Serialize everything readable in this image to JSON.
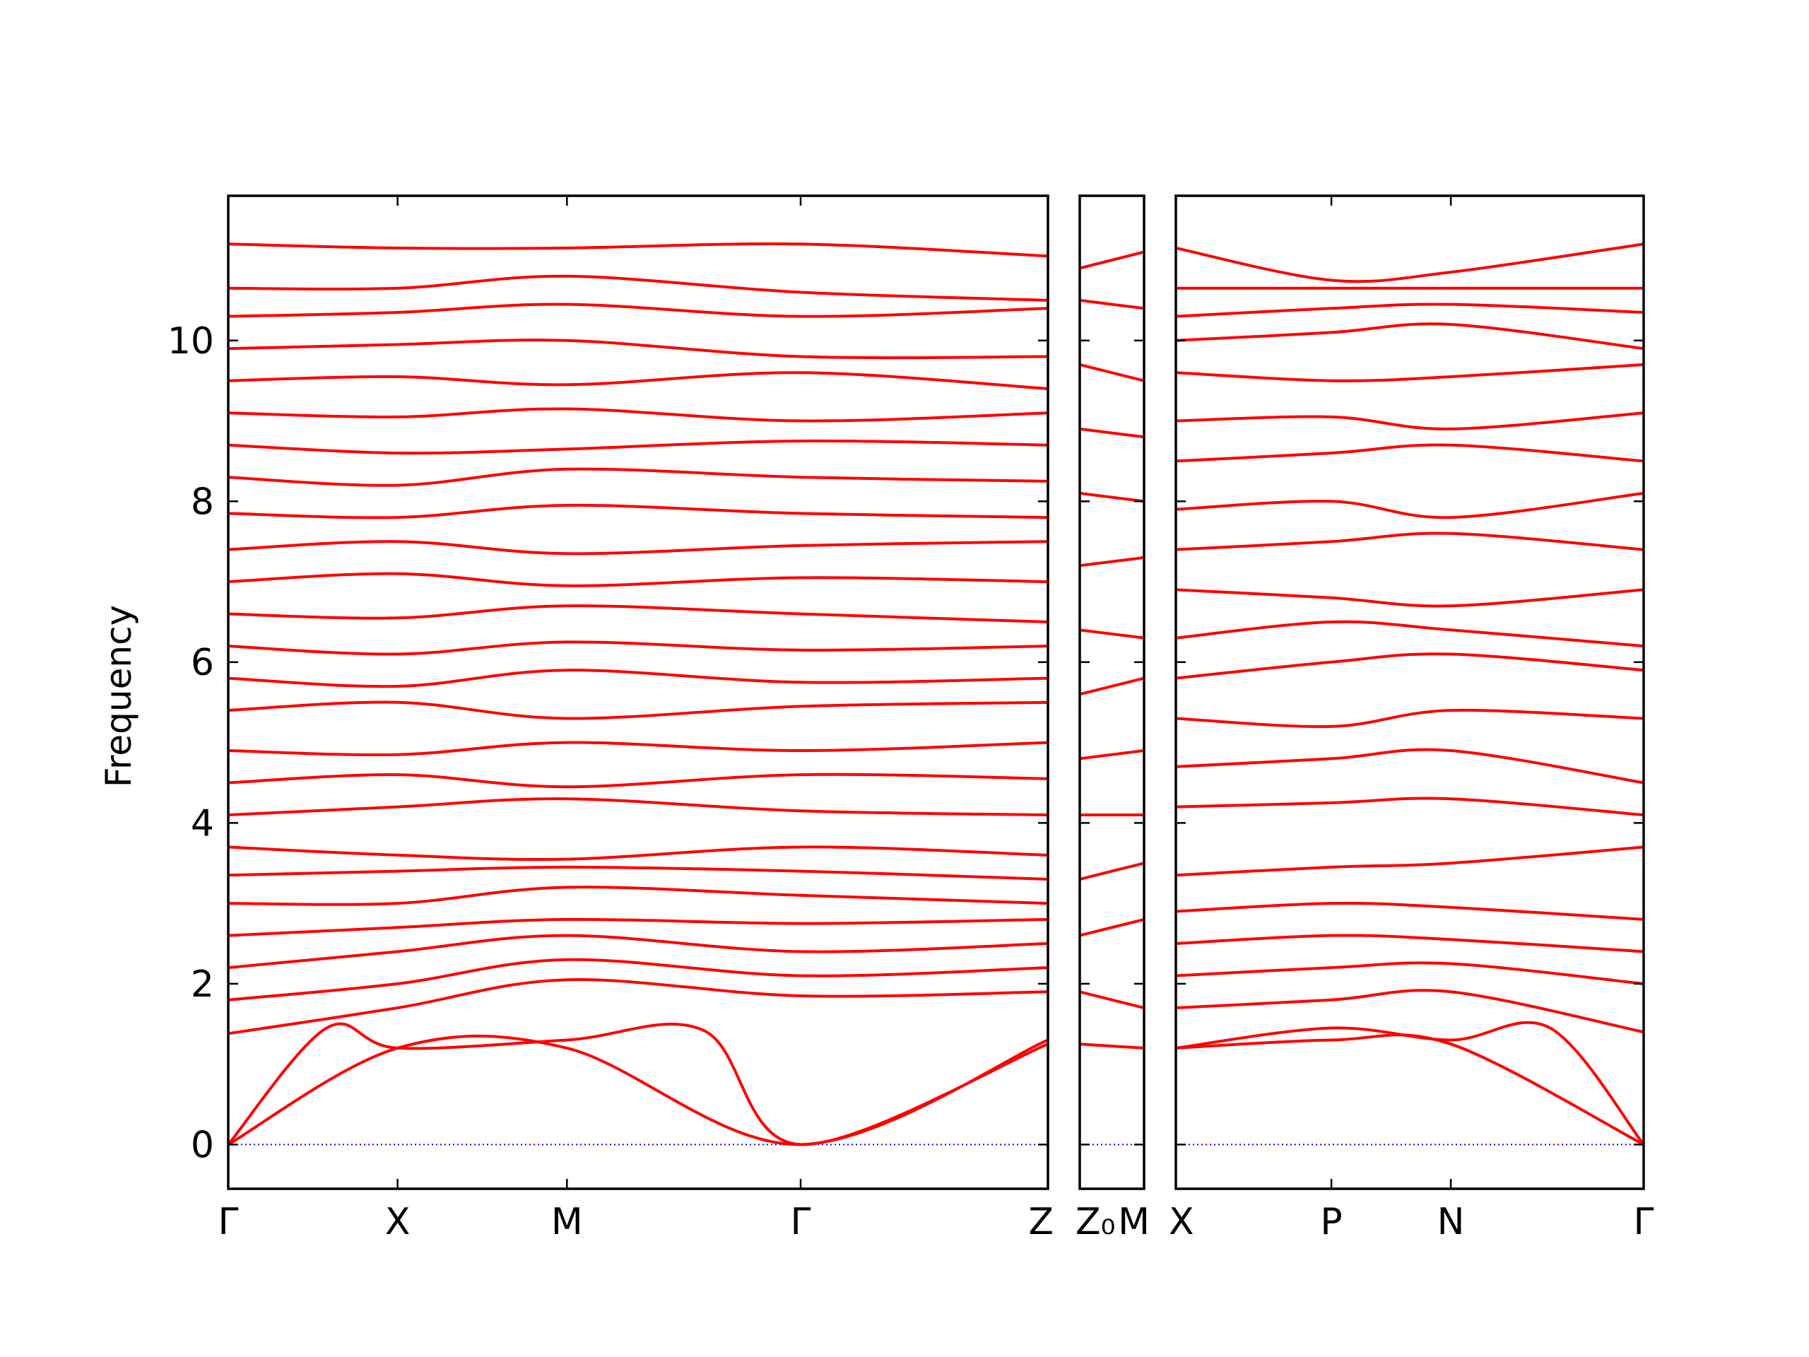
{
  "chart_data": {
    "type": "line",
    "title": "",
    "ylabel": "Frequency",
    "xlabel": "",
    "ylim": [
      -0.55,
      11.8
    ],
    "yticks": [
      0,
      2,
      4,
      6,
      8,
      10
    ],
    "grid": false,
    "legend": "none",
    "line_color": "#ff0000",
    "zero_line_color": "#0000ff",
    "panels": [
      {
        "id": "panel1",
        "labels": [
          "Γ",
          "X",
          "M",
          "Γ",
          "Z"
        ],
        "label_positions": [
          0,
          0.2066,
          0.4132,
          0.6983,
          1.0
        ]
      },
      {
        "id": "panel2",
        "labels": [
          "Z₀",
          "M"
        ],
        "label_positions": [
          0,
          1.0
        ]
      },
      {
        "id": "panel3",
        "labels": [
          "X",
          "P",
          "N",
          "Γ"
        ],
        "label_positions": [
          0,
          0.3325,
          0.5878,
          1.0
        ]
      }
    ],
    "series": [
      {
        "panel": 0,
        "x": [
          0,
          0.2066,
          0.4132,
          0.6983,
          1.0
        ],
        "y": [
          0,
          1.2,
          1.2,
          0,
          1.3
        ]
      },
      {
        "panel": 0,
        "x": [
          0,
          0.12,
          0.2066,
          0.4132,
          0.58,
          0.6983,
          1.0
        ],
        "y": [
          0,
          1.45,
          1.2,
          1.3,
          1.42,
          0,
          1.25
        ]
      },
      {
        "panel": 0,
        "x": [
          0,
          0.2066,
          0.4132,
          0.6983,
          1.0
        ],
        "y": [
          1.38,
          1.7,
          2.05,
          1.85,
          1.9
        ]
      },
      {
        "panel": 0,
        "x": [
          0,
          0.2066,
          0.4132,
          0.6983,
          1.0
        ],
        "y": [
          1.8,
          2.0,
          2.3,
          2.1,
          2.2
        ]
      },
      {
        "panel": 0,
        "x": [
          0,
          0.2066,
          0.4132,
          0.6983,
          1.0
        ],
        "y": [
          2.2,
          2.4,
          2.6,
          2.4,
          2.5
        ]
      },
      {
        "panel": 0,
        "x": [
          0,
          0.2066,
          0.4132,
          0.6983,
          1.0
        ],
        "y": [
          2.6,
          2.7,
          2.8,
          2.75,
          2.8
        ]
      },
      {
        "panel": 0,
        "x": [
          0,
          0.2066,
          0.4132,
          0.6983,
          1.0
        ],
        "y": [
          3.0,
          3.0,
          3.2,
          3.1,
          3.0
        ]
      },
      {
        "panel": 0,
        "x": [
          0,
          0.2066,
          0.4132,
          0.6983,
          1.0
        ],
        "y": [
          3.35,
          3.4,
          3.45,
          3.4,
          3.3
        ]
      },
      {
        "panel": 0,
        "x": [
          0,
          0.2066,
          0.4132,
          0.6983,
          1.0
        ],
        "y": [
          3.7,
          3.6,
          3.55,
          3.7,
          3.6
        ]
      },
      {
        "panel": 0,
        "x": [
          0,
          0.2066,
          0.4132,
          0.6983,
          1.0
        ],
        "y": [
          4.1,
          4.2,
          4.3,
          4.15,
          4.1
        ]
      },
      {
        "panel": 0,
        "x": [
          0,
          0.2066,
          0.4132,
          0.6983,
          1.0
        ],
        "y": [
          4.5,
          4.6,
          4.45,
          4.6,
          4.55
        ]
      },
      {
        "panel": 0,
        "x": [
          0,
          0.2066,
          0.4132,
          0.6983,
          1.0
        ],
        "y": [
          4.9,
          4.85,
          5.0,
          4.9,
          5.0
        ]
      },
      {
        "panel": 0,
        "x": [
          0,
          0.2066,
          0.4132,
          0.6983,
          1.0
        ],
        "y": [
          5.4,
          5.5,
          5.3,
          5.45,
          5.5
        ]
      },
      {
        "panel": 0,
        "x": [
          0,
          0.2066,
          0.4132,
          0.6983,
          1.0
        ],
        "y": [
          5.8,
          5.7,
          5.9,
          5.75,
          5.8
        ]
      },
      {
        "panel": 0,
        "x": [
          0,
          0.2066,
          0.4132,
          0.6983,
          1.0
        ],
        "y": [
          6.2,
          6.1,
          6.25,
          6.15,
          6.2
        ]
      },
      {
        "panel": 0,
        "x": [
          0,
          0.2066,
          0.4132,
          0.6983,
          1.0
        ],
        "y": [
          6.6,
          6.55,
          6.7,
          6.6,
          6.5
        ]
      },
      {
        "panel": 0,
        "x": [
          0,
          0.2066,
          0.4132,
          0.6983,
          1.0
        ],
        "y": [
          7.0,
          7.1,
          6.95,
          7.05,
          7.0
        ]
      },
      {
        "panel": 0,
        "x": [
          0,
          0.2066,
          0.4132,
          0.6983,
          1.0
        ],
        "y": [
          7.4,
          7.5,
          7.35,
          7.45,
          7.5
        ]
      },
      {
        "panel": 0,
        "x": [
          0,
          0.2066,
          0.4132,
          0.6983,
          1.0
        ],
        "y": [
          7.85,
          7.8,
          7.95,
          7.85,
          7.8
        ]
      },
      {
        "panel": 0,
        "x": [
          0,
          0.2066,
          0.4132,
          0.6983,
          1.0
        ],
        "y": [
          8.3,
          8.2,
          8.4,
          8.3,
          8.25
        ]
      },
      {
        "panel": 0,
        "x": [
          0,
          0.2066,
          0.4132,
          0.6983,
          1.0
        ],
        "y": [
          8.7,
          8.6,
          8.65,
          8.75,
          8.7
        ]
      },
      {
        "panel": 0,
        "x": [
          0,
          0.2066,
          0.4132,
          0.6983,
          1.0
        ],
        "y": [
          9.1,
          9.05,
          9.15,
          9.0,
          9.1
        ]
      },
      {
        "panel": 0,
        "x": [
          0,
          0.2066,
          0.4132,
          0.6983,
          1.0
        ],
        "y": [
          9.5,
          9.55,
          9.45,
          9.6,
          9.4
        ]
      },
      {
        "panel": 0,
        "x": [
          0,
          0.2066,
          0.4132,
          0.6983,
          1.0
        ],
        "y": [
          9.9,
          9.95,
          10.0,
          9.8,
          9.8
        ]
      },
      {
        "panel": 0,
        "x": [
          0,
          0.2066,
          0.4132,
          0.6983,
          1.0
        ],
        "y": [
          10.3,
          10.35,
          10.45,
          10.3,
          10.4
        ]
      },
      {
        "panel": 0,
        "x": [
          0,
          0.2066,
          0.4132,
          0.6983,
          1.0
        ],
        "y": [
          10.65,
          10.65,
          10.8,
          10.6,
          10.5
        ]
      },
      {
        "panel": 0,
        "x": [
          0,
          0.2066,
          0.4132,
          0.6983,
          1.0
        ],
        "y": [
          11.2,
          11.15,
          11.15,
          11.2,
          11.05
        ]
      },
      {
        "panel": 1,
        "x": [
          0,
          1.0
        ],
        "y": [
          1.25,
          1.2
        ]
      },
      {
        "panel": 1,
        "x": [
          0,
          1.0
        ],
        "y": [
          1.9,
          1.7
        ]
      },
      {
        "panel": 1,
        "x": [
          0,
          1.0
        ],
        "y": [
          2.6,
          2.8
        ]
      },
      {
        "panel": 1,
        "x": [
          0,
          1.0
        ],
        "y": [
          3.3,
          3.5
        ]
      },
      {
        "panel": 1,
        "x": [
          0,
          1.0
        ],
        "y": [
          4.1,
          4.1
        ]
      },
      {
        "panel": 1,
        "x": [
          0,
          1.0
        ],
        "y": [
          4.8,
          4.9
        ]
      },
      {
        "panel": 1,
        "x": [
          0,
          1.0
        ],
        "y": [
          5.6,
          5.8
        ]
      },
      {
        "panel": 1,
        "x": [
          0,
          1.0
        ],
        "y": [
          6.4,
          6.3
        ]
      },
      {
        "panel": 1,
        "x": [
          0,
          1.0
        ],
        "y": [
          7.2,
          7.3
        ]
      },
      {
        "panel": 1,
        "x": [
          0,
          1.0
        ],
        "y": [
          8.1,
          8.0
        ]
      },
      {
        "panel": 1,
        "x": [
          0,
          1.0
        ],
        "y": [
          8.9,
          8.8
        ]
      },
      {
        "panel": 1,
        "x": [
          0,
          1.0
        ],
        "y": [
          9.7,
          9.5
        ]
      },
      {
        "panel": 1,
        "x": [
          0,
          1.0
        ],
        "y": [
          10.5,
          10.4
        ]
      },
      {
        "panel": 1,
        "x": [
          0,
          1.0
        ],
        "y": [
          10.9,
          11.1
        ]
      },
      {
        "panel": 2,
        "x": [
          0,
          0.3325,
          0.5878,
          1.0
        ],
        "y": [
          1.2,
          1.3,
          1.25,
          0
        ]
      },
      {
        "panel": 2,
        "x": [
          0,
          0.3325,
          0.5878,
          0.8,
          1.0
        ],
        "y": [
          1.2,
          1.45,
          1.3,
          1.45,
          0
        ]
      },
      {
        "panel": 2,
        "x": [
          0,
          0.3325,
          0.5878,
          1.0
        ],
        "y": [
          1.7,
          1.8,
          1.9,
          1.4
        ]
      },
      {
        "panel": 2,
        "x": [
          0,
          0.3325,
          0.5878,
          1.0
        ],
        "y": [
          2.1,
          2.2,
          2.25,
          2.0
        ]
      },
      {
        "panel": 2,
        "x": [
          0,
          0.3325,
          0.5878,
          1.0
        ],
        "y": [
          2.5,
          2.6,
          2.55,
          2.4
        ]
      },
      {
        "panel": 2,
        "x": [
          0,
          0.3325,
          0.5878,
          1.0
        ],
        "y": [
          2.9,
          3.0,
          2.95,
          2.8
        ]
      },
      {
        "panel": 2,
        "x": [
          0,
          0.3325,
          0.5878,
          1.0
        ],
        "y": [
          3.35,
          3.45,
          3.5,
          3.7
        ]
      },
      {
        "panel": 2,
        "x": [
          0,
          0.3325,
          0.5878,
          1.0
        ],
        "y": [
          4.2,
          4.25,
          4.3,
          4.1
        ]
      },
      {
        "panel": 2,
        "x": [
          0,
          0.3325,
          0.5878,
          1.0
        ],
        "y": [
          4.7,
          4.8,
          4.9,
          4.5
        ]
      },
      {
        "panel": 2,
        "x": [
          0,
          0.3325,
          0.5878,
          1.0
        ],
        "y": [
          5.3,
          5.2,
          5.4,
          5.3
        ]
      },
      {
        "panel": 2,
        "x": [
          0,
          0.3325,
          0.5878,
          1.0
        ],
        "y": [
          5.8,
          6.0,
          6.1,
          5.9
        ]
      },
      {
        "panel": 2,
        "x": [
          0,
          0.3325,
          0.5878,
          1.0
        ],
        "y": [
          6.3,
          6.5,
          6.4,
          6.2
        ]
      },
      {
        "panel": 2,
        "x": [
          0,
          0.3325,
          0.5878,
          1.0
        ],
        "y": [
          6.9,
          6.8,
          6.7,
          6.9
        ]
      },
      {
        "panel": 2,
        "x": [
          0,
          0.3325,
          0.5878,
          1.0
        ],
        "y": [
          7.4,
          7.5,
          7.6,
          7.4
        ]
      },
      {
        "panel": 2,
        "x": [
          0,
          0.3325,
          0.5878,
          1.0
        ],
        "y": [
          7.9,
          8.0,
          7.8,
          8.1
        ]
      },
      {
        "panel": 2,
        "x": [
          0,
          0.3325,
          0.5878,
          1.0
        ],
        "y": [
          8.5,
          8.6,
          8.7,
          8.5
        ]
      },
      {
        "panel": 2,
        "x": [
          0,
          0.3325,
          0.5878,
          1.0
        ],
        "y": [
          9.0,
          9.05,
          8.9,
          9.1
        ]
      },
      {
        "panel": 2,
        "x": [
          0,
          0.3325,
          0.5878,
          1.0
        ],
        "y": [
          9.6,
          9.5,
          9.55,
          9.7
        ]
      },
      {
        "panel": 2,
        "x": [
          0,
          0.3325,
          0.5878,
          1.0
        ],
        "y": [
          10.0,
          10.1,
          10.2,
          9.9
        ]
      },
      {
        "panel": 2,
        "x": [
          0,
          0.3325,
          0.5878,
          1.0
        ],
        "y": [
          10.3,
          10.4,
          10.45,
          10.35
        ]
      },
      {
        "panel": 2,
        "x": [
          0,
          0.3325,
          0.5878,
          1.0
        ],
        "y": [
          10.65,
          10.65,
          10.65,
          10.65
        ]
      },
      {
        "panel": 2,
        "x": [
          0,
          0.3325,
          0.5878,
          1.0
        ],
        "y": [
          11.15,
          10.75,
          10.85,
          11.2
        ]
      }
    ]
  }
}
